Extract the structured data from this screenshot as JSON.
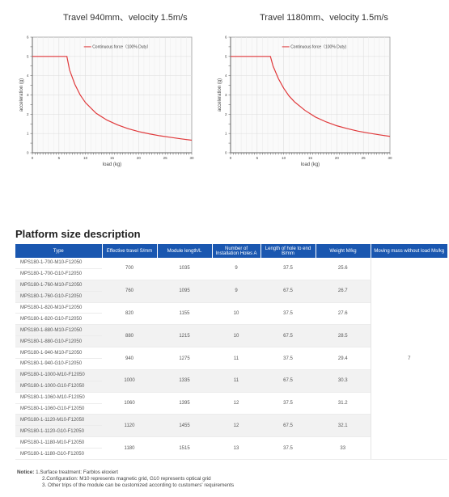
{
  "chart_data": [
    {
      "type": "line",
      "title": "Travel 940mm、velocity 1.5m/s",
      "xlabel": "load (kg)",
      "ylabel": "acceleration (g)",
      "xlim": [
        0,
        30
      ],
      "ylim": [
        0,
        6
      ],
      "xticks": [
        "0",
        "5",
        "10",
        "15",
        "20",
        "25",
        "30"
      ],
      "yticks": [
        "0",
        "1",
        "2",
        "3",
        "4",
        "5",
        "6"
      ],
      "grid": true,
      "legend": "top-right",
      "series": [
        {
          "name": "Continuous force（100% Duty）",
          "color": "#e0393b",
          "x": [
            0,
            6.5,
            7,
            8,
            9,
            10,
            12,
            14,
            16,
            18,
            20,
            22,
            24,
            26,
            28,
            30
          ],
          "y": [
            5,
            5,
            4.3,
            3.55,
            3.0,
            2.6,
            2.05,
            1.7,
            1.45,
            1.25,
            1.1,
            0.98,
            0.88,
            0.8,
            0.72,
            0.65
          ]
        }
      ]
    },
    {
      "type": "line",
      "title": "Travel 1180mm、velocity 1.5m/s",
      "xlabel": "load (kg)",
      "ylabel": "acceleration (g)",
      "xlim": [
        0,
        30
      ],
      "ylim": [
        0,
        6
      ],
      "xticks": [
        "0",
        "5",
        "10",
        "15",
        "20",
        "25",
        "30"
      ],
      "yticks": [
        "0",
        "1",
        "2",
        "3",
        "4",
        "5",
        "6"
      ],
      "grid": true,
      "legend": "top-right",
      "series": [
        {
          "name": "Continuous force（100% Duty)",
          "color": "#e0393b",
          "x": [
            0,
            7.5,
            8,
            9,
            10,
            11,
            12,
            14,
            16,
            18,
            20,
            22,
            24,
            26,
            28,
            30
          ],
          "y": [
            5,
            5,
            4.5,
            3.85,
            3.35,
            2.95,
            2.65,
            2.2,
            1.85,
            1.6,
            1.4,
            1.25,
            1.12,
            1.02,
            0.93,
            0.85
          ]
        }
      ]
    }
  ],
  "section": {
    "title": "Platform size description"
  },
  "table": {
    "headers": [
      "Type",
      "Effective travel S/mm",
      "Module length/L",
      "Number of Installation Holes A",
      "Length of hole to end B/mm",
      "Weight M/kg",
      "Moving mass without load Ms/kg"
    ],
    "groups": [
      {
        "types": [
          "MPS180-1-700-M10-F12050",
          "MPS180-1-700-G10-F12050"
        ],
        "travel": "700",
        "length": "1035",
        "holes": "9",
        "hole_len": "37.5",
        "weight": "25.6"
      },
      {
        "types": [
          "MPS180-1-760-M10-F12050",
          "MPS180-1-760-G10-F12050"
        ],
        "travel": "760",
        "length": "1095",
        "holes": "9",
        "hole_len": "67.5",
        "weight": "26.7"
      },
      {
        "types": [
          "MPS180-1-820-M10-F12050",
          "MPS180-1-820-G10-F12050"
        ],
        "travel": "820",
        "length": "1155",
        "holes": "10",
        "hole_len": "37.5",
        "weight": "27.6"
      },
      {
        "types": [
          "MPS180-1-880-M10-F12050",
          "MPS180-1-880-G10-F12050"
        ],
        "travel": "880",
        "length": "1215",
        "holes": "10",
        "hole_len": "67.5",
        "weight": "28.5"
      },
      {
        "types": [
          "MPS180-1-940-M10-F12050",
          "MPS180-1-940-G10-F12050"
        ],
        "travel": "940",
        "length": "1275",
        "holes": "11",
        "hole_len": "37.5",
        "weight": "29.4"
      },
      {
        "types": [
          "MPS180-1-1000-M10-F12050",
          "MPS180-1-1000-G10-F12050"
        ],
        "travel": "1000",
        "length": "1335",
        "holes": "11",
        "hole_len": "67.5",
        "weight": "30.3"
      },
      {
        "types": [
          "MPS180-1-1060-M10-F12050",
          "MPS180-1-1060-G10-F12050"
        ],
        "travel": "1060",
        "length": "1395",
        "holes": "12",
        "hole_len": "37.5",
        "weight": "31.2"
      },
      {
        "types": [
          "MPS180-1-1120-M10-F12050",
          "MPS180-1-1120-G10-F12050"
        ],
        "travel": "1120",
        "length": "1455",
        "holes": "12",
        "hole_len": "67.5",
        "weight": "32.1"
      },
      {
        "types": [
          "MPS180-1-1180-M10-F12050",
          "MPS180-1-1180-G10-F12050"
        ],
        "travel": "1180",
        "length": "1515",
        "holes": "13",
        "hole_len": "37.5",
        "weight": "33"
      }
    ],
    "moving_mass": "7"
  },
  "notice": {
    "label": "Notice:",
    "lines": [
      "1.Surface treatment: Farblos eloxiert",
      "2.Configuration: M10 represents magnetic grid, G10 represents optical grid",
      "3. Other trips of the module can be customized according to customers' requirements"
    ]
  },
  "colors": {
    "header_bg": "#1a57b0",
    "curve": "#e0393b",
    "row_alt": "#f2f2f2"
  }
}
